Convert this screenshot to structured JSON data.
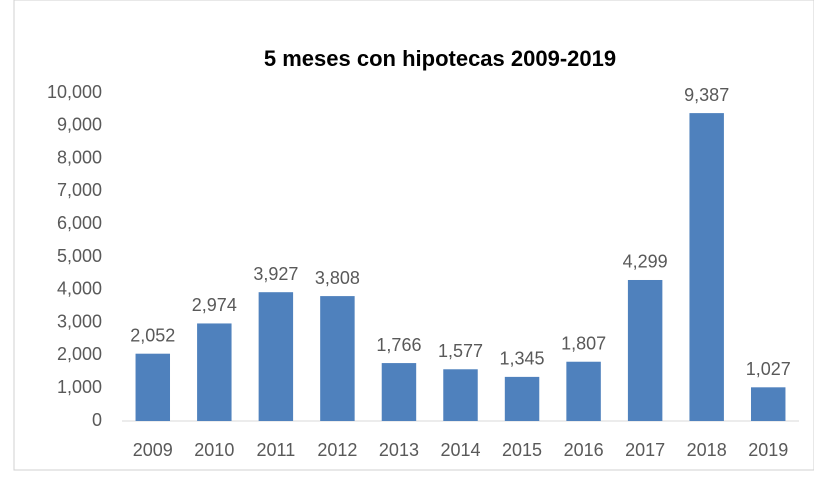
{
  "chart_data": {
    "type": "bar",
    "title": "5 meses con hipotecas 2009-2019",
    "categories": [
      "2009",
      "2010",
      "2011",
      "2012",
      "2013",
      "2014",
      "2015",
      "2016",
      "2017",
      "2018",
      "2019"
    ],
    "values": [
      2052,
      2974,
      3927,
      3808,
      1766,
      1577,
      1345,
      1807,
      4299,
      9387,
      1027
    ],
    "value_labels": [
      "2,052",
      "2,974",
      "3,927",
      "3,808",
      "1,766",
      "1,577",
      "1,345",
      "1,807",
      "4,299",
      "9,387",
      "1,027"
    ],
    "color": "#4f81bd",
    "ylim": [
      0,
      10000
    ],
    "yticks": [
      0,
      {
        "value": 1000,
        "label": "1,000"
      },
      {
        "value": 2000,
        "label": "2,000"
      },
      {
        "value": 3000,
        "label": "3,000"
      },
      {
        "value": 4000,
        "label": "4,000"
      },
      {
        "value": 5000,
        "label": "5,000"
      },
      {
        "value": 6000,
        "label": "6,000"
      },
      {
        "value": 7000,
        "label": "7,000"
      },
      {
        "value": 8000,
        "label": "8,000"
      },
      {
        "value": 9000,
        "label": "9,000"
      },
      {
        "value": 10000,
        "label": "10,000"
      }
    ],
    "grid": false
  }
}
